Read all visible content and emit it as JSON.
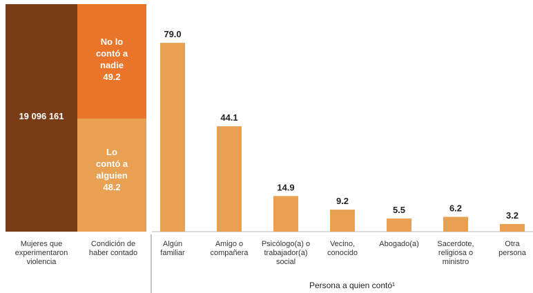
{
  "colors": {
    "dark": "#7a3b17",
    "orange": "#e8752a",
    "light": "#e8a052",
    "bar": "#e8a052"
  },
  "stack": {
    "total_label": "19 096 161",
    "no_conto": [
      "No lo",
      "contó a",
      "nadie",
      "49.2"
    ],
    "si_conto": [
      "Lo",
      "contó a",
      "alguien",
      "48.2"
    ],
    "categories": [
      [
        "Mujeres que",
        "experimentaron",
        "violencia"
      ],
      [
        "Condición de",
        "haber contado"
      ]
    ]
  },
  "chart_data": {
    "type": "bar",
    "categories": [
      [
        "Algún",
        "familiar"
      ],
      [
        "Amigo o",
        "compañera"
      ],
      [
        "Psicólogo(a) o",
        "trabajador(a)",
        "social"
      ],
      [
        "Vecino,",
        "conocido"
      ],
      [
        "Abogado(a)"
      ],
      [
        "Sacerdote,",
        "religiosa o",
        "ministro"
      ],
      [
        "Otra",
        "persona"
      ]
    ],
    "values": [
      79.0,
      44.1,
      14.9,
      9.2,
      5.5,
      6.2,
      3.2
    ],
    "value_labels": [
      "79.0",
      "44.1",
      "14.9",
      "9.2",
      "5.5",
      "6.2",
      "3.2"
    ],
    "xlabel": "Persona a quien contó¹",
    "ylim": [
      0,
      90
    ]
  }
}
